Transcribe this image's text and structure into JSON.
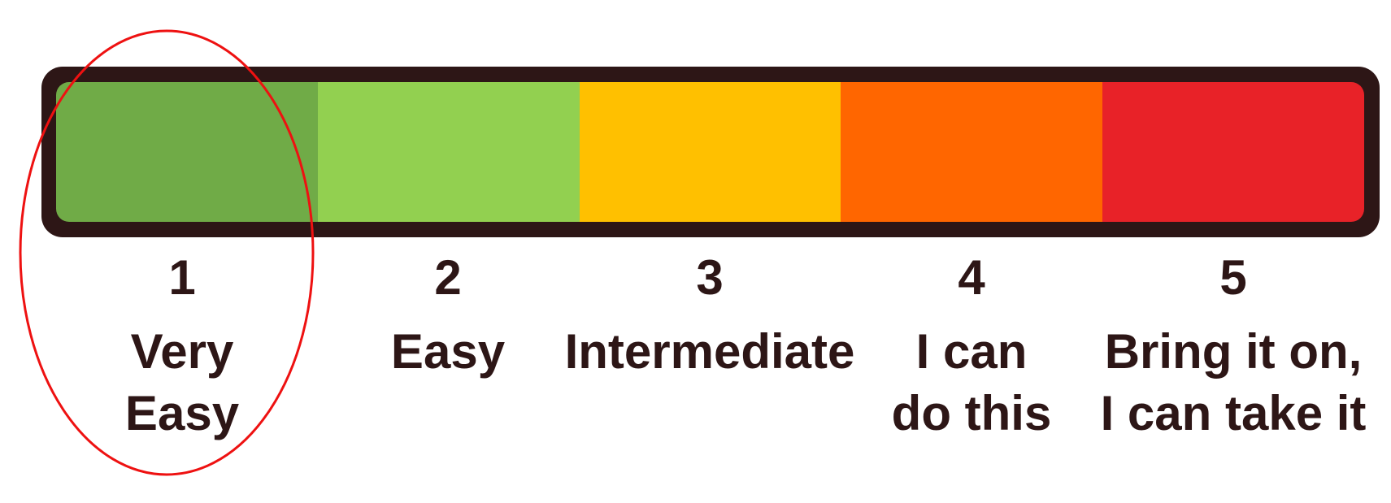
{
  "scale": {
    "levels": [
      {
        "number": "1",
        "lines": [
          "Very",
          "Easy"
        ],
        "color": "#70ab47"
      },
      {
        "number": "2",
        "lines": [
          "Easy"
        ],
        "color": "#92d050"
      },
      {
        "number": "3",
        "lines": [
          "Intermediate"
        ],
        "color": "#ffc000"
      },
      {
        "number": "4",
        "lines": [
          "I can",
          "do this"
        ],
        "color": "#ff6600"
      },
      {
        "number": "5",
        "lines": [
          "Bring it on,",
          "I can take it"
        ],
        "color": "#e82228"
      }
    ],
    "border_color": "#2d1616",
    "highlighted_level": "1",
    "highlight_color": "#ee1111"
  }
}
